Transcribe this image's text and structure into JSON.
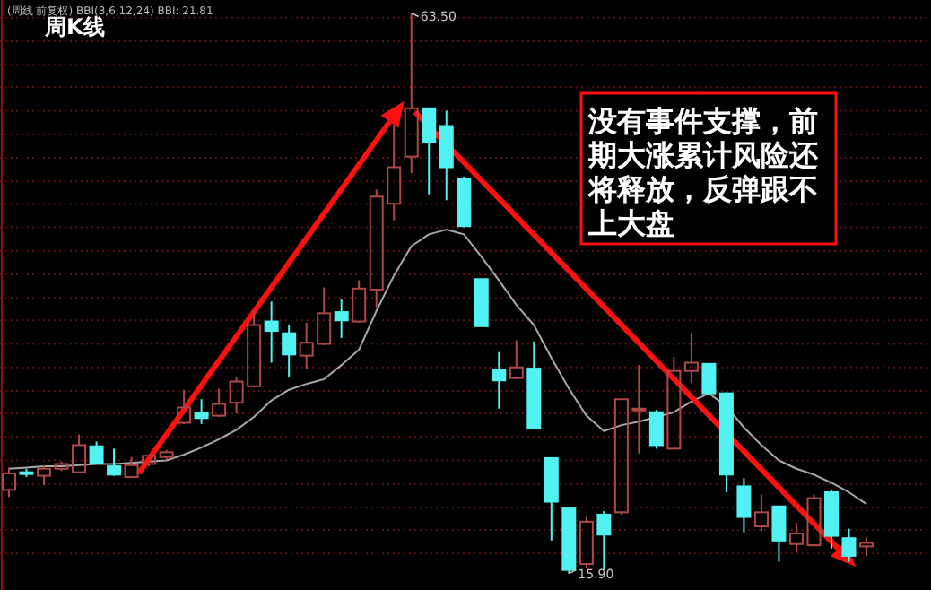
{
  "chart_data": {
    "type": "candlestick",
    "title": "周K线",
    "subtitle": "(周线 前复权) BBI(3,6,12,24) BBI: 21.81",
    "grid": "y",
    "ylim": [
      14.5,
      64.6
    ],
    "yticks": [
      {
        "value": 63.1,
        "label": null
      },
      {
        "value": 61.1,
        "label": null
      },
      {
        "value": 59.1,
        "label": null
      },
      {
        "value": 57.2,
        "label": null
      },
      {
        "value": 55.2,
        "label": null
      },
      {
        "value": 53.2,
        "label": null
      },
      {
        "value": 51.2,
        "label": null
      },
      {
        "value": 49.2,
        "label": null
      },
      {
        "value": 47.3,
        "label": null
      },
      {
        "value": 45.3,
        "label": null
      },
      {
        "value": 43.3,
        "label": null
      },
      {
        "value": 41.3,
        "label": null
      },
      {
        "value": 39.3,
        "label": null
      },
      {
        "value": 37.4,
        "label": null
      },
      {
        "value": 35.4,
        "label": null
      },
      {
        "value": 33.4,
        "label": null
      },
      {
        "value": 31.4,
        "label": null
      },
      {
        "value": 29.5,
        "label": null
      },
      {
        "value": 27.5,
        "label": null
      },
      {
        "value": 25.5,
        "label": null
      },
      {
        "value": 23.5,
        "label": null
      },
      {
        "value": 21.5,
        "label": null
      },
      {
        "value": 19.6,
        "label": null
      },
      {
        "value": 17.6,
        "label": null
      }
    ],
    "categories": [
      null,
      null,
      null,
      null,
      null,
      null,
      null,
      null,
      null,
      null,
      null,
      null,
      null,
      null,
      null,
      null,
      null,
      null,
      null,
      null,
      null,
      null,
      null,
      null,
      null,
      null,
      null,
      null,
      null,
      null,
      null,
      null,
      null,
      null,
      null,
      null,
      null,
      null,
      null,
      null,
      null,
      null,
      null,
      null,
      null,
      null,
      null,
      null,
      null,
      null
    ],
    "ohlc": [
      [
        23.0,
        24.9,
        22.4,
        24.4
      ],
      [
        24.5,
        24.8,
        24.1,
        24.4
      ],
      [
        24.2,
        25.1,
        23.4,
        24.8
      ],
      [
        24.8,
        25.4,
        24.6,
        25.2
      ],
      [
        24.5,
        27.7,
        24.4,
        26.8
      ],
      [
        26.7,
        27.1,
        25.2,
        25.3
      ],
      [
        25.0,
        26.5,
        24.2,
        24.3
      ],
      [
        24.1,
        25.8,
        24.1,
        25.1
      ],
      [
        25.2,
        26.0,
        25.0,
        25.9
      ],
      [
        25.8,
        26.4,
        25.6,
        26.2
      ],
      [
        28.7,
        31.5,
        28.6,
        30.0
      ],
      [
        29.5,
        30.7,
        28.6,
        29.1
      ],
      [
        29.3,
        31.6,
        29.2,
        30.3
      ],
      [
        30.4,
        32.6,
        29.5,
        32.2
      ],
      [
        31.8,
        38.2,
        31.7,
        37.0
      ],
      [
        37.3,
        39.0,
        33.8,
        36.5
      ],
      [
        36.3,
        37.0,
        32.6,
        34.5
      ],
      [
        34.4,
        37.2,
        33.3,
        35.5
      ],
      [
        35.4,
        40.2,
        35.3,
        38.0
      ],
      [
        38.1,
        39.2,
        35.9,
        37.4
      ],
      [
        37.3,
        40.8,
        37.2,
        40.1
      ],
      [
        40.0,
        48.5,
        38.5,
        47.9
      ],
      [
        47.3,
        54.0,
        45.9,
        50.4
      ],
      [
        51.3,
        63.5,
        49.9,
        55.4
      ],
      [
        55.4,
        55.4,
        48.1,
        52.5
      ],
      [
        53.9,
        55.2,
        47.6,
        50.4
      ],
      [
        49.4,
        49.6,
        45.3,
        45.4
      ],
      [
        40.9,
        40.9,
        36.9,
        36.9
      ],
      [
        33.2,
        34.7,
        29.9,
        32.3
      ],
      [
        32.5,
        35.7,
        32.4,
        33.4
      ],
      [
        33.3,
        35.6,
        28.2,
        28.2
      ],
      [
        25.7,
        25.7,
        18.7,
        22.0
      ],
      [
        21.5,
        21.5,
        15.9,
        16.2
      ],
      [
        16.7,
        20.7,
        16.4,
        20.3
      ],
      [
        20.9,
        21.2,
        16.2,
        19.2
      ],
      [
        21.1,
        30.7,
        20.9,
        30.7
      ],
      [
        29.8,
        33.6,
        26.1,
        29.9
      ],
      [
        29.6,
        29.8,
        26.5,
        26.8
      ],
      [
        26.5,
        34.3,
        26.4,
        33.1
      ],
      [
        33.1,
        36.3,
        32.1,
        33.8
      ],
      [
        33.7,
        33.7,
        31.2,
        31.2
      ],
      [
        31.2,
        31.3,
        22.8,
        24.3
      ],
      [
        23.3,
        24.0,
        19.4,
        20.7
      ],
      [
        19.9,
        22.6,
        19.5,
        21.1
      ],
      [
        21.6,
        21.6,
        16.9,
        18.7
      ],
      [
        18.4,
        20.2,
        17.7,
        19.3
      ],
      [
        18.3,
        22.6,
        18.2,
        22.3
      ],
      [
        22.8,
        23.0,
        18.0,
        19.1
      ],
      [
        18.9,
        19.7,
        16.9,
        17.4
      ],
      [
        18.2,
        19.0,
        17.4,
        18.5
      ]
    ],
    "series": [
      {
        "type": "line",
        "color": "#a8a8a8",
        "values": [
          24.8,
          24.9,
          25.0,
          25.0,
          25.1,
          25.2,
          25.2,
          25.3,
          25.4,
          25.5,
          26.0,
          26.6,
          27.3,
          28.1,
          29.2,
          30.6,
          31.5,
          32.0,
          32.4,
          33.6,
          34.9,
          38.2,
          41.2,
          43.7,
          44.7,
          45.1,
          44.7,
          42.8,
          40.8,
          38.7,
          37.0,
          34.2,
          31.6,
          29.3,
          28.0,
          28.5,
          28.8,
          29.2,
          29.6,
          30.5,
          31.2,
          30.1,
          28.3,
          26.8,
          25.5,
          24.8,
          24.3,
          23.6,
          22.8,
          21.8
        ]
      }
    ],
    "annotations": [
      "63.50",
      {
        "text": "15.90",
        "y": 15.9
      },
      "没有事件支撑，前期大涨累计风险还将释放，反弹跟不上大盘"
    ]
  }
}
